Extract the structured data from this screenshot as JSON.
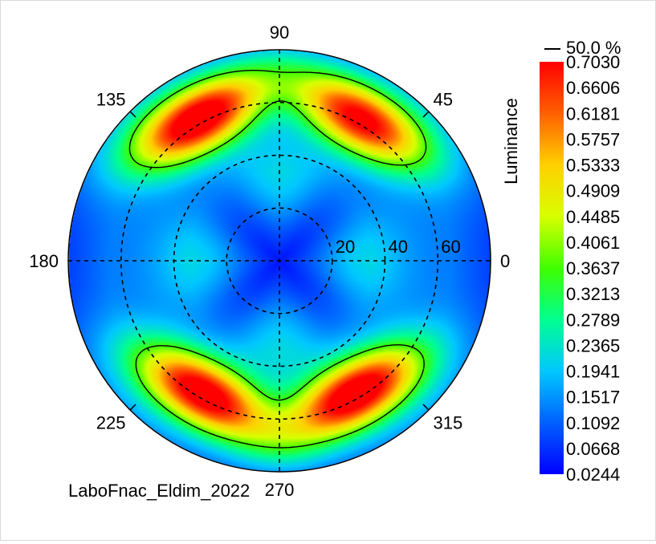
{
  "chart_data": {
    "type": "heatmap",
    "subtype": "polar-conoscope",
    "caption": "LaboFnac_Eldim_2022",
    "angle_labels": [
      "90",
      "45",
      "0",
      "315",
      "270",
      "225",
      "180",
      "135"
    ],
    "angle_values": [
      90,
      45,
      0,
      315,
      270,
      225,
      180,
      135
    ],
    "ring_labels": [
      "20",
      "40",
      "60"
    ],
    "ring_values": [
      20,
      40,
      60
    ],
    "max_inclination": 80,
    "colorbar": {
      "title": "Luminance",
      "contour_legend": "50.0 %",
      "ticks": [
        "0.7030",
        "0.6606",
        "0.6181",
        "0.5757",
        "0.5333",
        "0.4909",
        "0.4485",
        "0.4061",
        "0.3637",
        "0.3213",
        "0.2789",
        "0.2365",
        "0.1941",
        "0.1517",
        "0.1092",
        "0.0668",
        "0.0244"
      ],
      "min": 0.0244,
      "max": 0.703,
      "colormap": [
        "#0000ff",
        "#0060ff",
        "#00c8ff",
        "#00ff90",
        "#40ff00",
        "#d8ff00",
        "#ffd000",
        "#ff6000",
        "#ff0000"
      ]
    },
    "contour_level": 0.3637,
    "hot_lobes": [
      {
        "azimuth": 120,
        "inclination": 62,
        "peak": 0.703
      },
      {
        "azimuth": 60,
        "inclination": 62,
        "peak": 0.64
      },
      {
        "azimuth": 240,
        "inclination": 58,
        "peak": 0.68
      },
      {
        "azimuth": 300,
        "inclination": 58,
        "peak": 0.703
      }
    ],
    "grid": true
  }
}
